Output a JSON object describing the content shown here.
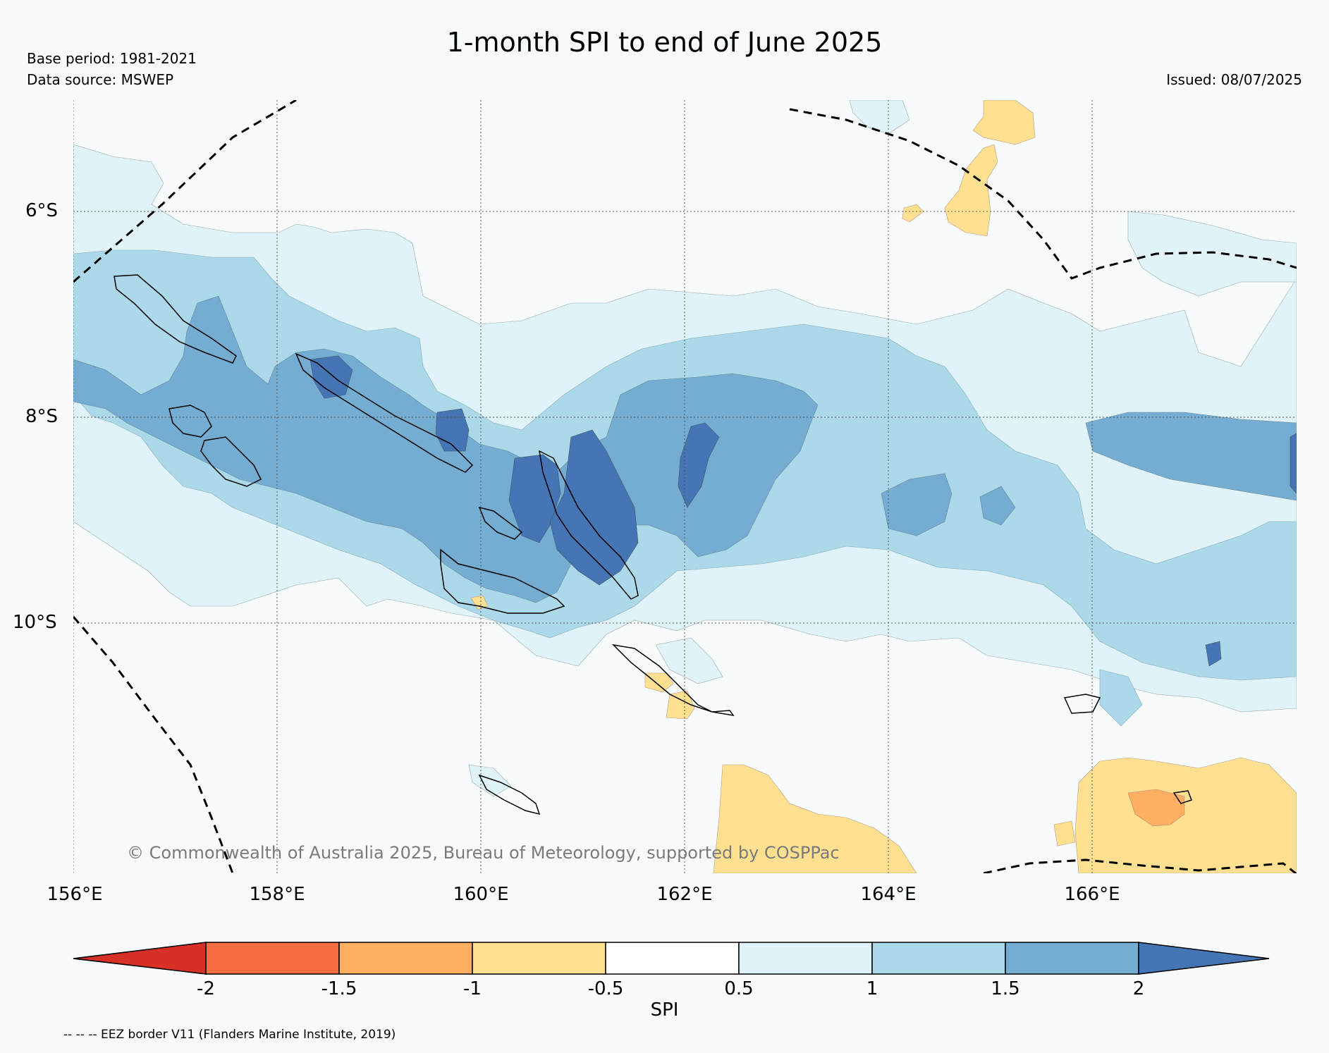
{
  "header": {
    "title": "1-month SPI to end of June 2025",
    "base_period": "Base period: 1981-2021",
    "data_source": "Data source: MSWEP",
    "issued": "Issued: 08/07/2025"
  },
  "map": {
    "lat_labels": [
      "6°S",
      "8°S",
      "10°S"
    ],
    "lon_labels": [
      "156°E",
      "158°E",
      "160°E",
      "162°E",
      "164°E",
      "166°E"
    ],
    "credit": "© Commonwealth of Australia 2025, Bureau of Meteorology, supported by COSPPac",
    "eez_note": "-- -- -- EEZ border V11 (Flanders Marine Institute, 2019)"
  },
  "colorbar": {
    "label": "SPI",
    "ticks": [
      "-2",
      "-1.5",
      "-1",
      "-0.5",
      "0.5",
      "1",
      "1.5",
      "2"
    ],
    "colors": {
      "lt_-2": "#d73027",
      "-2_-1.5": "#f46d43",
      "-1.5_-1": "#fdae61",
      "-1_-0.5": "#fee090",
      "-0.5_0.5": "#ffffff",
      "0.5_1": "#e0f3f8",
      "1_1.5": "#abd9e9",
      "1.5_2": "#74add1",
      "gt_2": "#4575b4"
    }
  }
}
